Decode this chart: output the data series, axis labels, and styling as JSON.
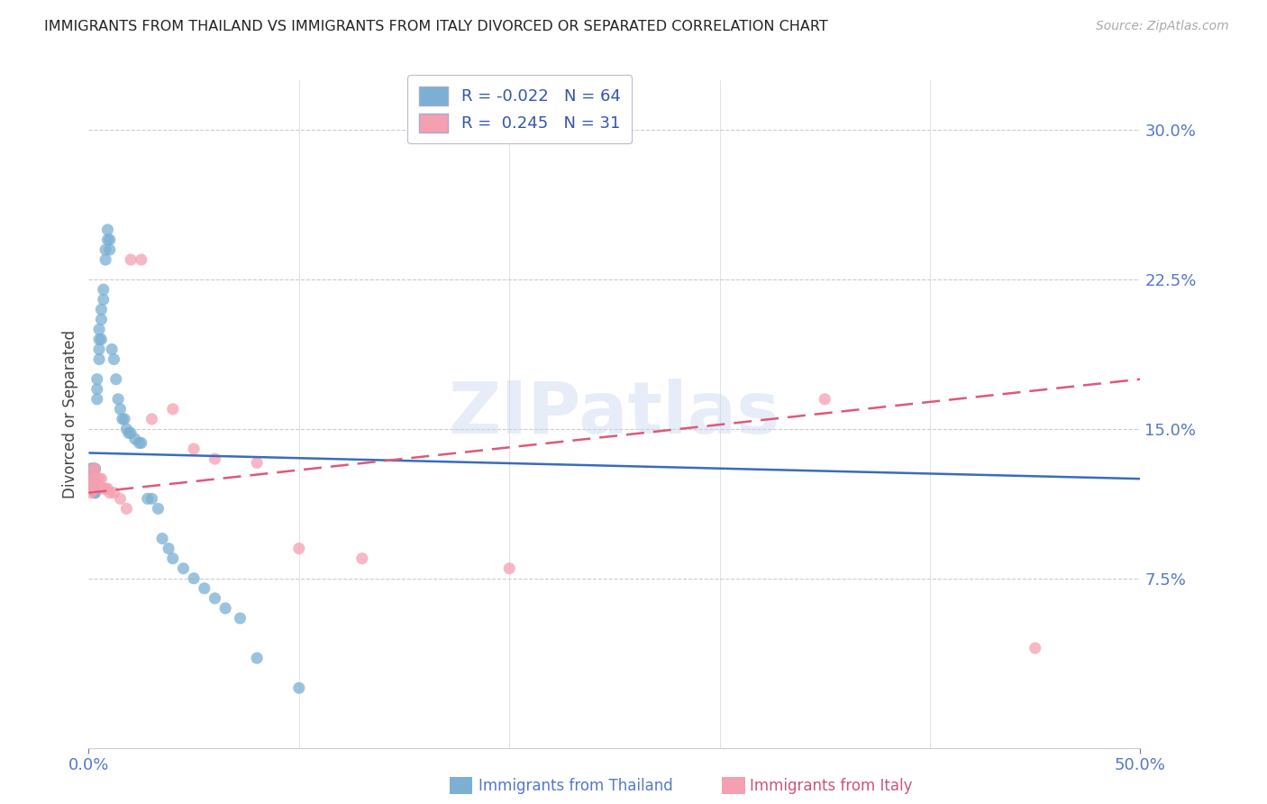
{
  "title": "IMMIGRANTS FROM THAILAND VS IMMIGRANTS FROM ITALY DIVORCED OR SEPARATED CORRELATION CHART",
  "source": "Source: ZipAtlas.com",
  "ylabel": "Divorced or Separated",
  "right_yticks": [
    "30.0%",
    "22.5%",
    "15.0%",
    "7.5%"
  ],
  "right_ytick_vals": [
    0.3,
    0.225,
    0.15,
    0.075
  ],
  "xlim": [
    0.0,
    0.5
  ],
  "ylim": [
    -0.01,
    0.325
  ],
  "thailand_color": "#7bafd4",
  "italy_color": "#f4a0b0",
  "trend_thailand_color": "#3a6bbf",
  "trend_italy_color": "#e05878",
  "watermark": "ZIPatlas",
  "thailand_R": -0.022,
  "italy_R": 0.245,
  "thailand_N": 64,
  "italy_N": 31,
  "thailand_x": [
    0.001,
    0.001,
    0.001,
    0.002,
    0.002,
    0.002,
    0.002,
    0.002,
    0.002,
    0.002,
    0.002,
    0.003,
    0.003,
    0.003,
    0.003,
    0.003,
    0.003,
    0.003,
    0.003,
    0.004,
    0.004,
    0.004,
    0.005,
    0.005,
    0.005,
    0.005,
    0.006,
    0.006,
    0.006,
    0.007,
    0.007,
    0.008,
    0.008,
    0.009,
    0.009,
    0.01,
    0.01,
    0.011,
    0.012,
    0.013,
    0.014,
    0.015,
    0.016,
    0.017,
    0.018,
    0.019,
    0.02,
    0.022,
    0.024,
    0.025,
    0.028,
    0.03,
    0.033,
    0.035,
    0.038,
    0.04,
    0.045,
    0.05,
    0.055,
    0.06,
    0.065,
    0.072,
    0.08,
    0.1
  ],
  "thailand_y": [
    0.13,
    0.13,
    0.125,
    0.13,
    0.13,
    0.13,
    0.125,
    0.125,
    0.12,
    0.12,
    0.12,
    0.13,
    0.13,
    0.13,
    0.125,
    0.125,
    0.12,
    0.118,
    0.118,
    0.175,
    0.17,
    0.165,
    0.2,
    0.195,
    0.19,
    0.185,
    0.21,
    0.205,
    0.195,
    0.22,
    0.215,
    0.24,
    0.235,
    0.25,
    0.245,
    0.245,
    0.24,
    0.19,
    0.185,
    0.175,
    0.165,
    0.16,
    0.155,
    0.155,
    0.15,
    0.148,
    0.148,
    0.145,
    0.143,
    0.143,
    0.115,
    0.115,
    0.11,
    0.095,
    0.09,
    0.085,
    0.08,
    0.075,
    0.07,
    0.065,
    0.06,
    0.055,
    0.035,
    0.02
  ],
  "italy_x": [
    0.001,
    0.001,
    0.001,
    0.002,
    0.002,
    0.002,
    0.003,
    0.003,
    0.003,
    0.004,
    0.005,
    0.006,
    0.007,
    0.008,
    0.009,
    0.01,
    0.012,
    0.015,
    0.018,
    0.02,
    0.025,
    0.03,
    0.04,
    0.05,
    0.06,
    0.08,
    0.1,
    0.13,
    0.2,
    0.35,
    0.45
  ],
  "italy_y": [
    0.125,
    0.12,
    0.118,
    0.13,
    0.125,
    0.12,
    0.13,
    0.125,
    0.12,
    0.125,
    0.125,
    0.125,
    0.12,
    0.12,
    0.12,
    0.118,
    0.118,
    0.115,
    0.11,
    0.235,
    0.235,
    0.155,
    0.16,
    0.14,
    0.135,
    0.133,
    0.09,
    0.085,
    0.08,
    0.165,
    0.04
  ],
  "thailand_trend_x": [
    0.0,
    0.5
  ],
  "thailand_trend_y_start": 0.138,
  "thailand_trend_y_end": 0.125,
  "italy_trend_x": [
    0.0,
    0.5
  ],
  "italy_trend_y_start": 0.118,
  "italy_trend_y_end": 0.175
}
